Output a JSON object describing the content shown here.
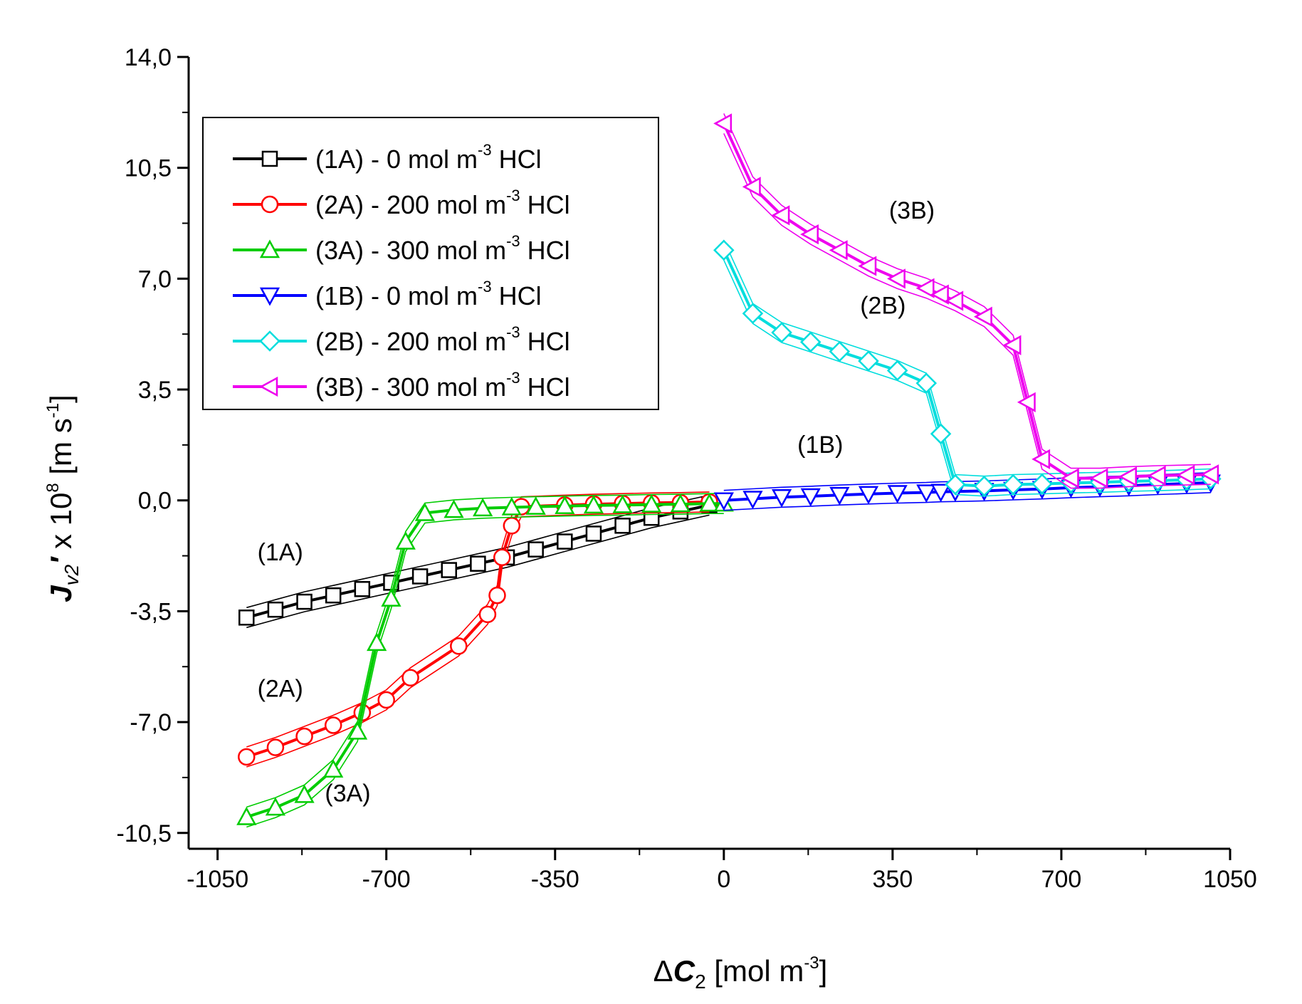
{
  "chart_data": {
    "type": "line",
    "xlabel": "ΔC₂ [mol m⁻³]",
    "ylabel": "J_v2′ x 10⁸ [m s⁻¹]",
    "xlabel_parts": {
      "prefix": "Δ",
      "symbol": "C",
      "sub": "2",
      "unit_start": " [mol m",
      "unit_sup": "-3",
      "unit_end": "]"
    },
    "ylabel_parts": {
      "symbol": "J",
      "sub": "v2",
      "prime": "′",
      "factor": " x 10",
      "factor_sup": "8",
      "unit_start": " [m s",
      "unit_sup": "-1",
      "unit_end": "]"
    },
    "xlim": [
      -1110,
      1050
    ],
    "ylim": [
      -11.0,
      14.0
    ],
    "xticks": [
      -1050,
      -700,
      -350,
      0,
      350,
      700,
      1050
    ],
    "xtick_labels": [
      "-1050",
      "-700",
      "-350",
      "0",
      "350",
      "700",
      "1050"
    ],
    "yticks": [
      -10.5,
      -7.0,
      -3.5,
      0.0,
      3.5,
      7.0,
      10.5,
      14.0
    ],
    "ytick_labels": [
      "-10,5",
      "-7,0",
      "-3,5",
      "0,0",
      "3,5",
      "7,0",
      "10,5",
      "14,0"
    ],
    "legend_position": "top-left",
    "series": [
      {
        "id": "1A",
        "name": "(1A) - 0 mol m⁻³ HCl",
        "legend_parts": {
          "main": "(1A) - 0 mol m",
          "sup": "-3",
          "tail": " HCl"
        },
        "color": "#000000",
        "marker": "square",
        "x": [
          -990,
          -930,
          -870,
          -810,
          -750,
          -690,
          -630,
          -570,
          -510,
          -450,
          -390,
          -330,
          -270,
          -210,
          -150,
          -90,
          -30
        ],
        "y": [
          -3.7,
          -3.45,
          -3.2,
          -3.0,
          -2.8,
          -2.6,
          -2.4,
          -2.2,
          -2.0,
          -1.8,
          -1.55,
          -1.3,
          -1.05,
          -0.8,
          -0.55,
          -0.35,
          -0.15
        ]
      },
      {
        "id": "2A",
        "name": "(2A) - 200 mol m⁻³ HCl",
        "legend_parts": {
          "main": "(2A) - 200 mol m",
          "sup": "-3",
          "tail": " HCl"
        },
        "color": "#ff0000",
        "marker": "circle",
        "x": [
          -990,
          -930,
          -870,
          -810,
          -750,
          -700,
          -650,
          -550,
          -490,
          -470,
          -460,
          -440,
          -420,
          -330,
          -270,
          -210,
          -150,
          -90,
          -30
        ],
        "y": [
          -8.1,
          -7.8,
          -7.45,
          -7.1,
          -6.7,
          -6.3,
          -5.6,
          -4.6,
          -3.6,
          -3.0,
          -1.8,
          -0.8,
          -0.2,
          -0.15,
          -0.12,
          -0.1,
          -0.08,
          -0.07,
          -0.05
        ]
      },
      {
        "id": "3A",
        "name": "(3A) - 300 mol m⁻³ HCl",
        "legend_parts": {
          "main": "(3A) - 300 mol m",
          "sup": "-3",
          "tail": " HCl"
        },
        "color": "#00cc00",
        "marker": "triangle-up",
        "x": [
          -990,
          -930,
          -870,
          -810,
          -760,
          -720,
          -690,
          -660,
          -620,
          -560,
          -500,
          -440,
          -390,
          -330,
          -270,
          -210,
          -150,
          -90,
          -30,
          0
        ],
        "y": [
          -10.0,
          -9.7,
          -9.3,
          -8.5,
          -7.3,
          -4.5,
          -3.1,
          -1.3,
          -0.4,
          -0.3,
          -0.25,
          -0.22,
          -0.2,
          -0.18,
          -0.16,
          -0.15,
          -0.13,
          -0.12,
          -0.1,
          -0.1
        ]
      },
      {
        "id": "1B",
        "name": "(1B) - 0 mol m⁻³ HCl",
        "legend_parts": {
          "main": "(1B) - 0 mol m",
          "sup": "-3",
          "tail": " HCl"
        },
        "color": "#0000ff",
        "marker": "triangle-down",
        "x": [
          0,
          60,
          120,
          180,
          240,
          300,
          360,
          420,
          450,
          480,
          540,
          600,
          660,
          720,
          780,
          840,
          900,
          960,
          1010
        ],
        "y": [
          0.0,
          0.05,
          0.1,
          0.13,
          0.17,
          0.2,
          0.23,
          0.25,
          0.27,
          0.28,
          0.3,
          0.33,
          0.36,
          0.4,
          0.43,
          0.46,
          0.5,
          0.53,
          0.56
        ]
      },
      {
        "id": "2B",
        "name": "(2B) - 200 mol m⁻³ HCl",
        "legend_parts": {
          "main": "(2B) - 200 mol m",
          "sup": "-3",
          "tail": " HCl"
        },
        "color": "#00dddd",
        "marker": "diamond",
        "x": [
          0,
          60,
          120,
          180,
          240,
          300,
          360,
          420,
          450,
          480,
          540,
          600,
          660,
          720,
          780,
          840,
          900,
          960,
          1010
        ],
        "y": [
          7.9,
          5.9,
          5.3,
          5.0,
          4.7,
          4.4,
          4.1,
          3.7,
          2.1,
          0.5,
          0.45,
          0.5,
          0.52,
          0.55,
          0.57,
          0.6,
          0.62,
          0.65,
          0.68
        ]
      },
      {
        "id": "3B",
        "name": "(3B) - 300 mol m⁻³ HCl",
        "legend_parts": {
          "main": "(3B) - 300 mol m",
          "sup": "-3",
          "tail": " HCl"
        },
        "color": "#ee00ee",
        "marker": "triangle-left",
        "x": [
          0,
          60,
          120,
          180,
          240,
          300,
          360,
          420,
          450,
          480,
          540,
          600,
          630,
          660,
          720,
          780,
          840,
          900,
          960,
          1010
        ],
        "y": [
          11.9,
          9.9,
          9.0,
          8.4,
          7.9,
          7.4,
          7.0,
          6.7,
          6.5,
          6.3,
          5.8,
          4.9,
          3.1,
          1.3,
          0.7,
          0.7,
          0.75,
          0.78,
          0.8,
          0.82
        ]
      }
    ],
    "annotations": [
      {
        "text": "(1A)",
        "x": -920,
        "y": -1.9
      },
      {
        "text": "(2A)",
        "x": -920,
        "y": -6.2
      },
      {
        "text": "(3A)",
        "x": -780,
        "y": -9.5
      },
      {
        "text": "(1B)",
        "x": 200,
        "y": 1.5
      },
      {
        "text": "(2B)",
        "x": 330,
        "y": 5.9
      },
      {
        "text": "(3B)",
        "x": 390,
        "y": 8.9
      }
    ]
  }
}
